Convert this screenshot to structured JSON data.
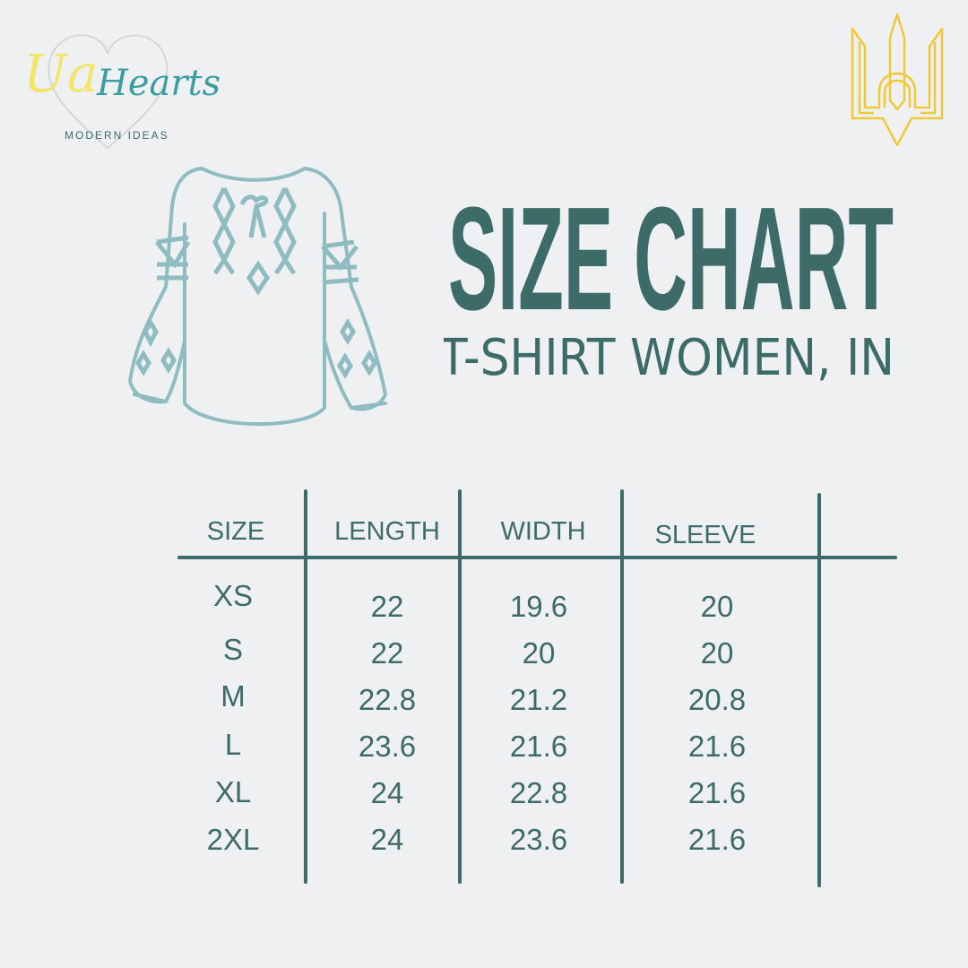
{
  "brand": {
    "logo_text_part1": "Ua",
    "logo_text_part2": "Hearts",
    "tagline": "MODERN IDEAS"
  },
  "title": "SIZE CHART",
  "subtitle": "T-SHIRT WOMEN, IN",
  "icons": {
    "logo": "heart-outline-logo",
    "emblem": "ukrainian-trident-icon",
    "illustration": "embroidered-blouse-vyshyvanka"
  },
  "colors": {
    "background": "#eef0f2",
    "text": "#3d6b68",
    "illustration": "#8fbcc0",
    "emblem": "#f0c93a",
    "logo_yellow": "#f2e56a",
    "logo_teal": "#3a9ea0"
  },
  "table": {
    "columns": [
      "SIZE",
      "LENGTH",
      "WIDTH",
      "SLEEVE"
    ],
    "rows": [
      [
        "XS",
        "22",
        "19.6",
        "20"
      ],
      [
        "S",
        "22",
        "20",
        "20"
      ],
      [
        "M",
        "22.8",
        "21.2",
        "20.8"
      ],
      [
        "L",
        "23.6",
        "21.6",
        "21.6"
      ],
      [
        "XL",
        "24",
        "22.8",
        "21.6"
      ],
      [
        "2XL",
        "24",
        "23.6",
        "21.6"
      ]
    ]
  }
}
